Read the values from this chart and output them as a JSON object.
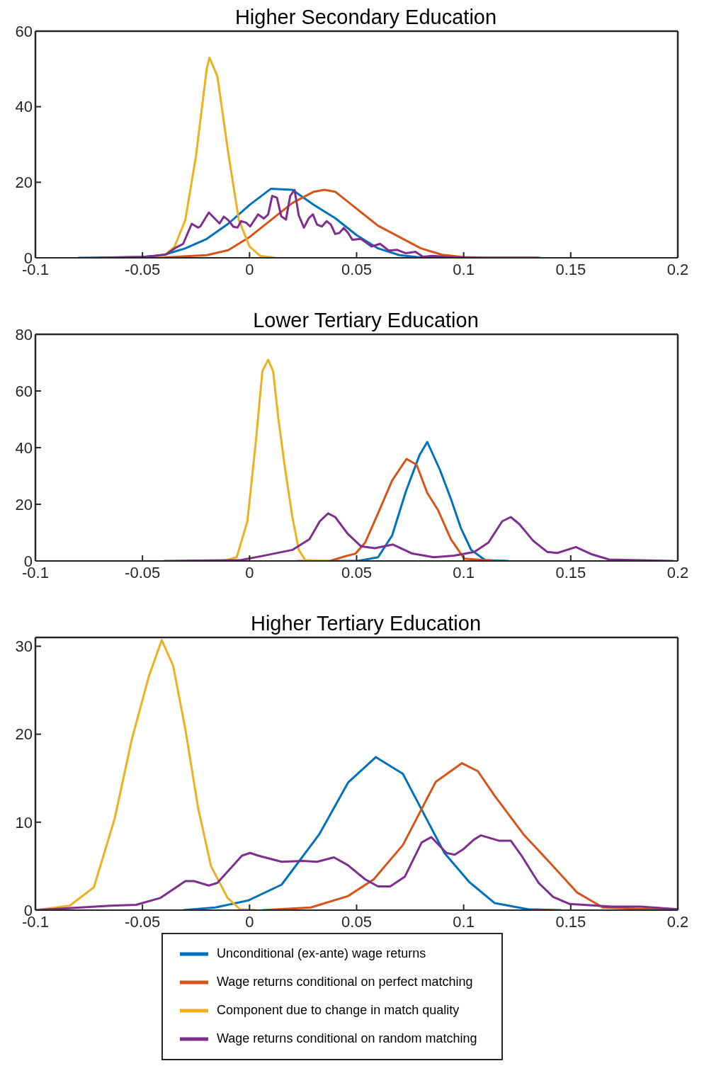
{
  "chart_data": [
    {
      "type": "line",
      "title": "Higher Secondary Education",
      "xlim": [
        -0.1,
        0.2
      ],
      "xticks": [
        -0.1,
        -0.05,
        0,
        0.05,
        0.1,
        0.15,
        0.2
      ],
      "ylim": [
        0,
        60
      ],
      "yticks": [
        0,
        20,
        40,
        60
      ],
      "legend": false,
      "series": [
        {
          "color": "#0072bd",
          "x": [
            -0.08,
            -0.05,
            -0.04,
            -0.03,
            -0.02,
            -0.01,
            0,
            0.01,
            0.02,
            0.03,
            0.04,
            0.05,
            0.06,
            0.07,
            0.08,
            0.1
          ],
          "values": [
            0,
            0.2,
            0.8,
            2.5,
            5,
            9,
            14,
            18.3,
            18,
            14,
            10.5,
            6,
            2.5,
            0.7,
            0.1,
            0
          ]
        },
        {
          "color": "#d95319",
          "x": [
            -0.07,
            -0.04,
            -0.02,
            -0.01,
            0,
            0.01,
            0.02,
            0.03,
            0.035,
            0.04,
            0.05,
            0.06,
            0.07,
            0.08,
            0.09,
            0.1,
            0.11,
            0.135
          ],
          "values": [
            0,
            0.1,
            0.7,
            2,
            5.5,
            10,
            14.5,
            17.5,
            18,
            17.5,
            13,
            8.5,
            5.5,
            2.5,
            0.8,
            0.2,
            0,
            0
          ]
        },
        {
          "color": "#edb120",
          "x": [
            -0.05,
            -0.04,
            -0.035,
            -0.03,
            -0.025,
            -0.02,
            -0.0187,
            -0.015,
            -0.01,
            -0.005,
            0,
            0.005,
            0.012
          ],
          "values": [
            0,
            0.5,
            3,
            10,
            27,
            50,
            53,
            48,
            28,
            10,
            3,
            0.5,
            0
          ]
        },
        {
          "color": "#7e2f8e",
          "x": [
            -0.07,
            -0.049,
            -0.044,
            -0.039,
            -0.035,
            -0.031,
            -0.027,
            -0.024,
            -0.023,
            -0.019,
            -0.014,
            -0.012,
            -0.01,
            -0.0075,
            -0.0056,
            -0.004,
            -0.0016,
            0.0003,
            0.004,
            0.0067,
            0.0087,
            0.0106,
            0.0128,
            0.0148,
            0.017,
            0.019,
            0.021,
            0.023,
            0.0254,
            0.0277,
            0.0296,
            0.0315,
            0.0338,
            0.036,
            0.038,
            0.04,
            0.042,
            0.044,
            0.046,
            0.048,
            0.052,
            0.057,
            0.061,
            0.065,
            0.069,
            0.073,
            0.0775,
            0.081,
            0.0855,
            0.093,
            0.1,
            0.136
          ],
          "values": [
            0,
            0.3,
            0.5,
            0.9,
            2.5,
            3.7,
            9,
            8,
            8.3,
            12,
            9.1,
            10.9,
            10,
            8.2,
            8,
            9.7,
            9.3,
            8.3,
            11.5,
            10.4,
            11.5,
            16.4,
            15.9,
            11,
            10.1,
            16.4,
            18,
            11.2,
            8,
            10.5,
            11.5,
            8.8,
            8.3,
            9.7,
            8.8,
            6.3,
            6.6,
            7.9,
            6.6,
            4.8,
            5,
            3,
            3.7,
            1.9,
            2.1,
            1.2,
            1.6,
            0.3,
            0.5,
            0.2,
            0,
            0
          ]
        }
      ]
    },
    {
      "type": "line",
      "title": "Lower Tertiary Education",
      "xlim": [
        -0.1,
        0.2
      ],
      "xticks": [
        -0.1,
        -0.05,
        0,
        0.05,
        0.1,
        0.15,
        0.2
      ],
      "ylim": [
        0,
        80
      ],
      "yticks": [
        0,
        20,
        40,
        60,
        80
      ],
      "legend": false,
      "series": [
        {
          "color": "#0072bd",
          "x": [
            0.0376,
            0.0505,
            0.06,
            0.0666,
            0.073,
            0.0794,
            0.083,
            0.089,
            0.094,
            0.0987,
            0.1035,
            0.11,
            0.121
          ],
          "values": [
            0,
            0,
            1.3,
            9,
            24.5,
            37.4,
            42,
            32,
            22,
            11.6,
            3.9,
            0.3,
            0
          ]
        },
        {
          "color": "#d95319",
          "x": [
            0.022,
            0.0376,
            0.044,
            0.0495,
            0.054,
            0.06,
            0.0666,
            0.0733,
            0.078,
            0.083,
            0.088,
            0.094,
            0.1003,
            0.115
          ],
          "values": [
            0,
            0,
            1.5,
            2.6,
            6.5,
            16.8,
            28.4,
            36,
            34,
            24,
            18,
            7.7,
            0.8,
            0
          ]
        },
        {
          "color": "#edb120",
          "x": [
            -0.012,
            -0.006,
            -0.001,
            0.003,
            0.006,
            0.0087,
            0.011,
            0.0135,
            0.0167,
            0.02,
            0.023,
            0.026,
            0.036
          ],
          "values": [
            0,
            1.3,
            14,
            42.6,
            67,
            71,
            67,
            50,
            32,
            15.5,
            3.9,
            0.3,
            0
          ]
        },
        {
          "color": "#7e2f8e",
          "x": [
            -0.04,
            -0.004,
            0.007,
            0.02,
            0.028,
            0.0328,
            0.0367,
            0.04,
            0.0457,
            0.052,
            0.0585,
            0.067,
            0.076,
            0.086,
            0.0955,
            0.105,
            0.1116,
            0.118,
            0.122,
            0.126,
            0.1325,
            0.139,
            0.1437,
            0.1524,
            0.16,
            0.168,
            0.198
          ],
          "values": [
            0,
            0.3,
            1.9,
            3.9,
            7.7,
            14,
            16.8,
            15.5,
            9.7,
            5.2,
            4.5,
            5.8,
            2.6,
            1.3,
            1.9,
            3.2,
            6.5,
            14,
            15.5,
            13,
            7.1,
            3.2,
            2.8,
            4.9,
            2.3,
            0.5,
            0
          ]
        }
      ]
    },
    {
      "type": "line",
      "title": "Higher Tertiary Education",
      "xlim": [
        -0.1,
        0.2
      ],
      "xticks": [
        -0.1,
        -0.05,
        0,
        0.05,
        0.1,
        0.15,
        0.2
      ],
      "ylim": [
        0,
        31
      ],
      "yticks": [
        0,
        10,
        20,
        30
      ],
      "legend": "bottom",
      "series": [
        {
          "name": "Unconditional (ex-ante) wage returns",
          "color": "#0072bd",
          "x": [
            -0.031,
            -0.016,
            -0.0006,
            0.015,
            0.0325,
            0.046,
            0.059,
            0.0716,
            0.0813,
            0.091,
            0.1026,
            0.1145,
            0.13,
            0.1457
          ],
          "values": [
            0,
            0.3,
            1.1,
            2.9,
            8.6,
            14.5,
            17.4,
            15.5,
            11,
            6.5,
            3.2,
            0.8,
            0.1,
            0
          ]
        },
        {
          "name": "Wage returns conditional on perfect matching",
          "color": "#d95319",
          "x": [
            0.006,
            0.0286,
            0.046,
            0.058,
            0.0716,
            0.087,
            0.0992,
            0.1066,
            0.1145,
            0.128,
            0.1418,
            0.153,
            0.165,
            0.2
          ],
          "values": [
            0,
            0.3,
            1.6,
            3.5,
            7.4,
            14.6,
            16.7,
            15.8,
            13,
            8.6,
            5,
            2,
            0.3,
            0
          ]
        },
        {
          "name": "Component due to change in match quality",
          "color": "#edb120",
          "x": [
            -0.1,
            -0.084,
            -0.0727,
            -0.063,
            -0.055,
            -0.047,
            -0.041,
            -0.0357,
            -0.03,
            -0.024,
            -0.018,
            -0.0103,
            -0.0045,
            0.003
          ],
          "values": [
            0,
            0.5,
            2.6,
            10.4,
            19.4,
            26.6,
            30.7,
            27.8,
            20.6,
            11.6,
            5,
            1.4,
            0.1,
            0
          ]
        },
        {
          "name": "Wage returns conditional on random matching",
          "color": "#7e2f8e",
          "x": [
            -0.1,
            -0.065,
            -0.053,
            -0.0415,
            -0.03,
            -0.026,
            -0.019,
            -0.015,
            -0.0035,
            0.0003,
            0.004,
            0.015,
            0.0248,
            0.0315,
            0.0394,
            0.046,
            0.054,
            0.06,
            0.0657,
            0.0725,
            0.0804,
            0.0849,
            0.092,
            0.0958,
            0.0997,
            0.1047,
            0.108,
            0.1164,
            0.122,
            0.127,
            0.135,
            0.1418,
            0.1495,
            0.169,
            0.1826,
            0.2
          ],
          "values": [
            0,
            0.5,
            0.6,
            1.4,
            3.3,
            3.3,
            2.8,
            3.1,
            6.2,
            6.5,
            6.2,
            5.5,
            5.6,
            5.5,
            6,
            5.1,
            3.5,
            2.7,
            2.7,
            3.8,
            7.7,
            8.3,
            6.5,
            6.3,
            6.9,
            8,
            8.5,
            7.9,
            7.9,
            6.2,
            3.1,
            1.5,
            0.7,
            0.4,
            0.4,
            0.1
          ]
        }
      ]
    }
  ]
}
